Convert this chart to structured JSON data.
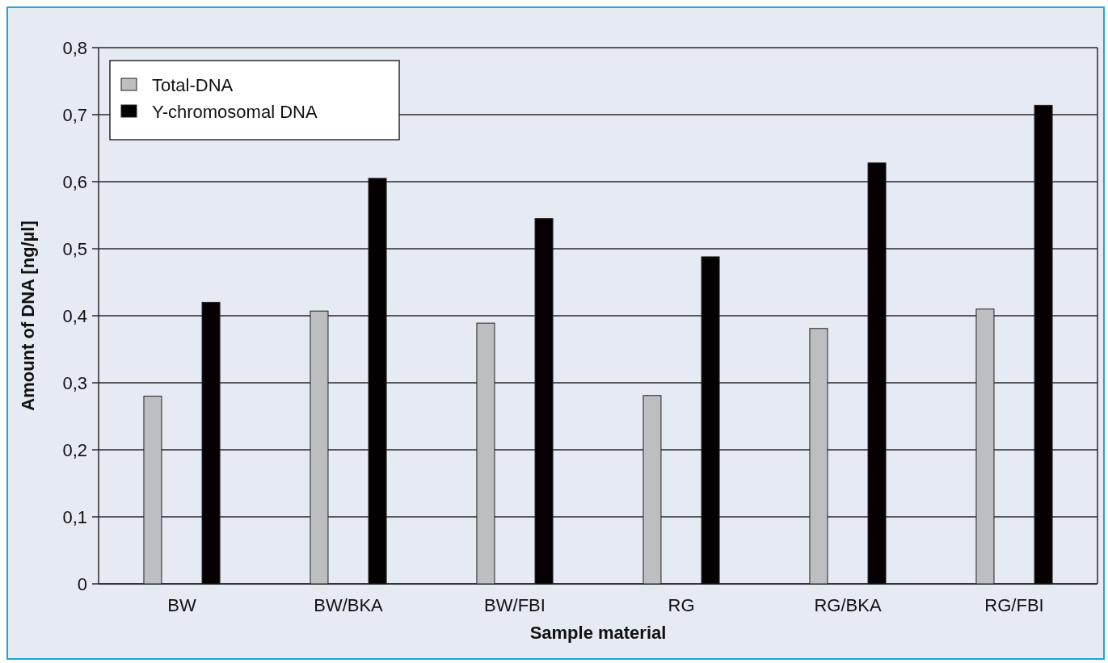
{
  "chart_data": {
    "type": "bar",
    "xlabel": "Sample material",
    "ylabel": "Amount of DNA [ng/µl]",
    "categories": [
      "BW",
      "BW/BKA",
      "BW/FBI",
      "RG",
      "RG/BKA",
      "RG/FBI"
    ],
    "series": [
      {
        "name": "Total-DNA",
        "color": "#bcbec2",
        "values": [
          0.28,
          0.407,
          0.389,
          0.281,
          0.381,
          0.41
        ]
      },
      {
        "name": "Y-chromosomal DNA",
        "color": "#050103",
        "values": [
          0.42,
          0.605,
          0.545,
          0.488,
          0.628,
          0.714
        ]
      }
    ],
    "ylim": [
      0,
      0.8
    ],
    "yticks": [
      0,
      {
        "value": 0.1,
        "label": "0,1"
      },
      {
        "value": 0.2,
        "label": "0,2"
      },
      {
        "value": 0.3,
        "label": "0,3"
      },
      {
        "value": 0.4,
        "label": "0,4"
      },
      {
        "value": 0.5,
        "label": "0,5"
      },
      {
        "value": 0.6,
        "label": "0,6"
      },
      {
        "value": 0.7,
        "label": "0,7"
      },
      {
        "value": 0.8,
        "label": "0,8"
      }
    ],
    "grid": "y",
    "legend": "top left"
  }
}
